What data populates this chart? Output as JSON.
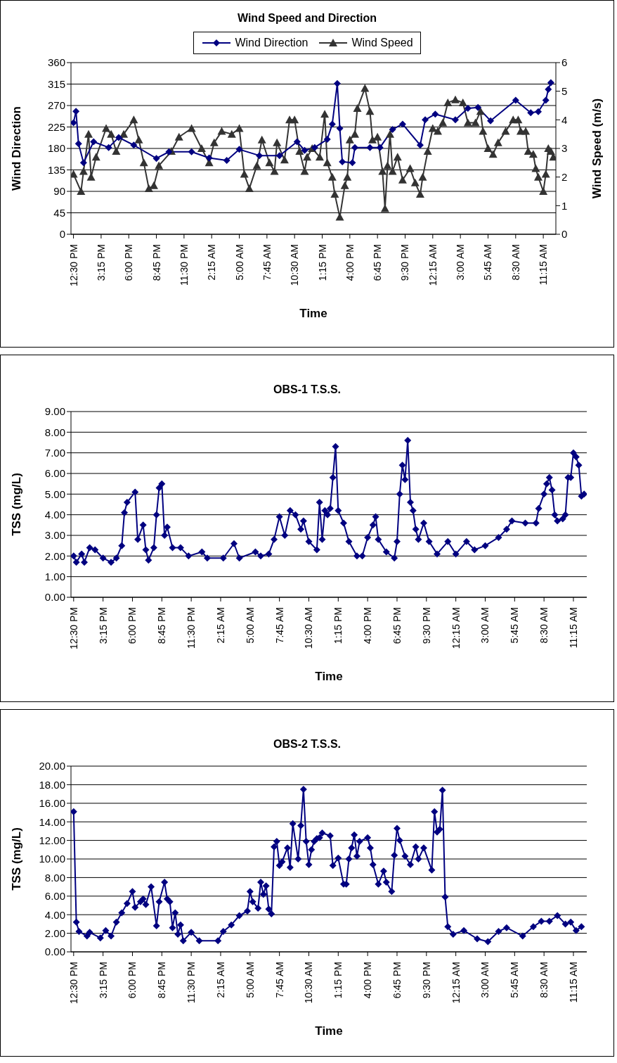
{
  "chart_data": [
    {
      "type": "line",
      "title": "Wind Speed and Direction",
      "xlabel": "Time",
      "ylabel": "Wind Direction",
      "y2label": "Wind Speed (m/s)",
      "legend": "top",
      "grid": "y",
      "line_style": "solid",
      "xlim": [
        "2000-01-01T12:15",
        "2000-01-03T12:30"
      ],
      "xticks": [
        {
          "value": "2000-01-01T12:30",
          "label": "12:30 PM"
        },
        {
          "value": "2000-01-01T15:15",
          "label": "3:15 PM"
        },
        {
          "value": "2000-01-01T18:00",
          "label": "6:00 PM"
        },
        {
          "value": "2000-01-01T20:45",
          "label": "8:45 PM"
        },
        {
          "value": "2000-01-01T23:30",
          "label": "11:30 PM"
        },
        {
          "value": "2000-01-02T02:15",
          "label": "2:15 AM"
        },
        {
          "value": "2000-01-02T05:00",
          "label": "5:00 AM"
        },
        {
          "value": "2000-01-02T07:45",
          "label": "7:45 AM"
        },
        {
          "value": "2000-01-02T10:30",
          "label": "10:30 AM"
        },
        {
          "value": "2000-01-02T13:15",
          "label": "1:15 PM"
        },
        {
          "value": "2000-01-02T16:00",
          "label": "4:00 PM"
        },
        {
          "value": "2000-01-02T18:45",
          "label": "6:45 PM"
        },
        {
          "value": "2000-01-02T21:30",
          "label": "9:30 PM"
        },
        {
          "value": "2000-01-03T00:15",
          "label": "12:15 AM"
        },
        {
          "value": "2000-01-03T03:00",
          "label": "3:00 AM"
        },
        {
          "value": "2000-01-03T05:45",
          "label": "5:45 AM"
        },
        {
          "value": "2000-01-03T08:30",
          "label": "8:30 AM"
        },
        {
          "value": "2000-01-03T11:15",
          "label": "11:15 AM"
        }
      ],
      "ylim": [
        0,
        360
      ],
      "yticks": [
        0,
        45,
        90,
        135,
        180,
        225,
        270,
        315,
        360
      ],
      "y2lim": [
        0,
        6
      ],
      "y2ticks": [
        0,
        1,
        2,
        3,
        4,
        5,
        6
      ],
      "series": [
        {
          "name": "Wind Direction",
          "color": "#000080",
          "marker": "diamond",
          "x": [
            "2000-01-01T12:30",
            "2000-01-01T12:45",
            "2000-01-01T13:00",
            "2000-01-01T13:30",
            "2000-01-01T14:30",
            "2000-01-01T16:00",
            "2000-01-01T17:00",
            "2000-01-01T18:30",
            "2000-01-01T20:45",
            "2000-01-01T22:00",
            "2000-01-02T00:15",
            "2000-01-02T02:00",
            "2000-01-02T03:45",
            "2000-01-02T05:00",
            "2000-01-02T07:00",
            "2000-01-02T09:00",
            "2000-01-02T10:45",
            "2000-01-02T11:30",
            "2000-01-02T12:30",
            "2000-01-02T13:45",
            "2000-01-02T14:15",
            "2000-01-02T14:45",
            "2000-01-02T15:00",
            "2000-01-02T15:15",
            "2000-01-02T16:15",
            "2000-01-02T16:30",
            "2000-01-02T18:00",
            "2000-01-02T19:00",
            "2000-01-02T20:15",
            "2000-01-02T21:15",
            "2000-01-02T23:00",
            "2000-01-02T23:30",
            "2000-01-03T00:30",
            "2000-01-03T02:30",
            "2000-01-03T03:45",
            "2000-01-03T04:45",
            "2000-01-03T06:00",
            "2000-01-03T08:30",
            "2000-01-03T10:00",
            "2000-01-03T10:45",
            "2000-01-03T11:30",
            "2000-01-03T11:45",
            "2000-01-03T12:00"
          ],
          "values": [
            234,
            258,
            190,
            150,
            194,
            182,
            203,
            187,
            159,
            173,
            173,
            160,
            155,
            178,
            165,
            165,
            194,
            176,
            182,
            199,
            231,
            316,
            222,
            152,
            150,
            182,
            182,
            182,
            220,
            231,
            187,
            240,
            252,
            240,
            264,
            266,
            238,
            281,
            255,
            257,
            281,
            304,
            318
          ]
        },
        {
          "name": "Wind Speed",
          "color": "#333333",
          "marker": "triangle",
          "axis": "y2",
          "x": [
            "2000-01-01T12:30",
            "2000-01-01T13:15",
            "2000-01-01T13:30",
            "2000-01-01T14:00",
            "2000-01-01T14:15",
            "2000-01-01T14:45",
            "2000-01-01T15:45",
            "2000-01-01T16:15",
            "2000-01-01T16:45",
            "2000-01-01T17:30",
            "2000-01-01T18:30",
            "2000-01-01T19:00",
            "2000-01-01T19:30",
            "2000-01-01T20:00",
            "2000-01-01T20:30",
            "2000-01-01T21:00",
            "2000-01-01T22:15",
            "2000-01-01T23:00",
            "2000-01-02T00:15",
            "2000-01-02T01:15",
            "2000-01-02T02:00",
            "2000-01-02T02:30",
            "2000-01-02T03:15",
            "2000-01-02T04:15",
            "2000-01-02T05:00",
            "2000-01-02T05:30",
            "2000-01-02T06:00",
            "2000-01-02T06:45",
            "2000-01-02T07:15",
            "2000-01-02T08:00",
            "2000-01-02T08:30",
            "2000-01-02T08:45",
            "2000-01-02T09:30",
            "2000-01-02T10:00",
            "2000-01-02T10:30",
            "2000-01-02T11:00",
            "2000-01-02T11:30",
            "2000-01-02T11:45",
            "2000-01-02T12:15",
            "2000-01-02T13:00",
            "2000-01-02T13:30",
            "2000-01-02T13:45",
            "2000-01-02T14:15",
            "2000-01-02T14:30",
            "2000-01-02T15:00",
            "2000-01-02T15:30",
            "2000-01-02T15:45",
            "2000-01-02T16:00",
            "2000-01-02T16:30",
            "2000-01-02T16:45",
            "2000-01-02T17:30",
            "2000-01-02T18:00",
            "2000-01-02T18:15",
            "2000-01-02T18:45",
            "2000-01-02T19:15",
            "2000-01-02T19:30",
            "2000-01-02T19:45",
            "2000-01-02T20:00",
            "2000-01-02T20:15",
            "2000-01-02T20:45",
            "2000-01-02T21:15",
            "2000-01-02T22:00",
            "2000-01-02T22:30",
            "2000-01-02T23:00",
            "2000-01-02T23:15",
            "2000-01-02T23:45",
            "2000-01-03T00:15",
            "2000-01-03T00:45",
            "2000-01-03T01:15",
            "2000-01-03T01:45",
            "2000-01-03T02:30",
            "2000-01-03T03:15",
            "2000-01-03T03:45",
            "2000-01-03T04:30",
            "2000-01-03T05:00",
            "2000-01-03T05:15",
            "2000-01-03T05:45",
            "2000-01-03T06:15",
            "2000-01-03T06:45",
            "2000-01-03T07:30",
            "2000-01-03T08:15",
            "2000-01-03T08:45",
            "2000-01-03T09:00",
            "2000-01-03T09:30",
            "2000-01-03T09:45",
            "2000-01-03T10:15",
            "2000-01-03T10:30",
            "2000-01-03T10:45",
            "2000-01-03T11:15",
            "2000-01-03T11:30",
            "2000-01-03T11:45",
            "2000-01-03T12:00",
            "2000-01-03T12:15"
          ],
          "values": [
            2.1,
            1.5,
            2.2,
            3.5,
            2.0,
            2.7,
            3.7,
            3.5,
            2.9,
            3.5,
            4.0,
            3.3,
            2.5,
            1.6,
            1.7,
            2.4,
            2.9,
            3.4,
            3.7,
            3.0,
            2.5,
            3.2,
            3.6,
            3.5,
            3.7,
            2.1,
            1.6,
            2.4,
            3.3,
            2.5,
            2.2,
            3.2,
            2.6,
            4.0,
            4.0,
            2.9,
            2.2,
            2.7,
            3.0,
            2.7,
            4.2,
            2.5,
            2.0,
            1.4,
            0.6,
            1.7,
            2.0,
            3.3,
            3.5,
            4.4,
            5.1,
            4.3,
            3.3,
            3.4,
            2.2,
            0.9,
            2.4,
            3.5,
            2.2,
            2.7,
            1.9,
            2.3,
            1.8,
            1.4,
            2.0,
            2.9,
            3.7,
            3.6,
            3.9,
            4.6,
            4.7,
            4.6,
            3.9,
            3.9,
            4.3,
            3.6,
            3.0,
            2.8,
            3.2,
            3.6,
            4.0,
            4.0,
            3.6,
            3.6,
            2.9,
            2.8,
            2.3,
            2.0,
            1.5,
            2.1,
            3.0,
            2.9,
            2.7
          ]
        }
      ]
    },
    {
      "type": "line",
      "title": "OBS-1 T.S.S.",
      "xlabel": "Time",
      "ylabel": "TSS (mg/L)",
      "grid": "y",
      "line_style": "solid",
      "xlim": [
        "2000-01-01T12:15",
        "2000-01-03T12:30"
      ],
      "xticks": [
        {
          "value": "2000-01-01T12:30",
          "label": "12:30 PM"
        },
        {
          "value": "2000-01-01T15:15",
          "label": "3:15 PM"
        },
        {
          "value": "2000-01-01T18:00",
          "label": "6:00 PM"
        },
        {
          "value": "2000-01-01T20:45",
          "label": "8:45 PM"
        },
        {
          "value": "2000-01-01T23:30",
          "label": "11:30 PM"
        },
        {
          "value": "2000-01-02T02:15",
          "label": "2:15 AM"
        },
        {
          "value": "2000-01-02T05:00",
          "label": "5:00 AM"
        },
        {
          "value": "2000-01-02T07:45",
          "label": "7:45 AM"
        },
        {
          "value": "2000-01-02T10:30",
          "label": "10:30 AM"
        },
        {
          "value": "2000-01-02T13:15",
          "label": "1:15 PM"
        },
        {
          "value": "2000-01-02T16:00",
          "label": "4:00 PM"
        },
        {
          "value": "2000-01-02T18:45",
          "label": "6:45 PM"
        },
        {
          "value": "2000-01-02T21:30",
          "label": "9:30 PM"
        },
        {
          "value": "2000-01-03T00:15",
          "label": "12:15 AM"
        },
        {
          "value": "2000-01-03T03:00",
          "label": "3:00 AM"
        },
        {
          "value": "2000-01-03T05:45",
          "label": "5:45 AM"
        },
        {
          "value": "2000-01-03T08:30",
          "label": "8:30 AM"
        },
        {
          "value": "2000-01-03T11:15",
          "label": "11:15 AM"
        }
      ],
      "ylim": [
        0,
        9
      ],
      "yticks": [
        {
          "value": 0,
          "label": "0.00"
        },
        {
          "value": 1,
          "label": "1.00"
        },
        {
          "value": 2,
          "label": "2.00"
        },
        {
          "value": 3,
          "label": "3.00"
        },
        {
          "value": 4,
          "label": "4.00"
        },
        {
          "value": 5,
          "label": "5.00"
        },
        {
          "value": 6,
          "label": "6.00"
        },
        {
          "value": 7,
          "label": "7.00"
        },
        {
          "value": 8,
          "label": "8.00"
        },
        {
          "value": 9,
          "label": "9.00"
        }
      ],
      "series": [
        {
          "color": "#000080",
          "marker": "diamond",
          "x": [
            "2000-01-01T12:30",
            "2000-01-01T12:45",
            "2000-01-01T13:15",
            "2000-01-01T13:30",
            "2000-01-01T14:00",
            "2000-01-01T14:30",
            "2000-01-01T15:15",
            "2000-01-01T16:00",
            "2000-01-01T16:30",
            "2000-01-01T17:00",
            "2000-01-01T17:15",
            "2000-01-01T17:30",
            "2000-01-01T18:15",
            "2000-01-01T18:30",
            "2000-01-01T19:00",
            "2000-01-01T19:15",
            "2000-01-01T19:30",
            "2000-01-01T20:00",
            "2000-01-01T20:15",
            "2000-01-01T20:30",
            "2000-01-01T20:45",
            "2000-01-01T21:00",
            "2000-01-01T21:15",
            "2000-01-01T21:45",
            "2000-01-01T22:30",
            "2000-01-01T23:15",
            "2000-01-02T00:30",
            "2000-01-02T01:00",
            "2000-01-02T02:30",
            "2000-01-02T03:30",
            "2000-01-02T04:00",
            "2000-01-02T05:30",
            "2000-01-02T06:00",
            "2000-01-02T06:45",
            "2000-01-02T07:15",
            "2000-01-02T07:45",
            "2000-01-02T08:15",
            "2000-01-02T08:45",
            "2000-01-02T09:15",
            "2000-01-02T09:45",
            "2000-01-02T10:00",
            "2000-01-02T10:30",
            "2000-01-02T11:15",
            "2000-01-02T11:30",
            "2000-01-02T11:45",
            "2000-01-02T12:00",
            "2000-01-02T12:15",
            "2000-01-02T12:30",
            "2000-01-02T12:45",
            "2000-01-02T13:00",
            "2000-01-02T13:15",
            "2000-01-02T13:45",
            "2000-01-02T14:15",
            "2000-01-02T15:00",
            "2000-01-02T15:30",
            "2000-01-02T16:00",
            "2000-01-02T16:30",
            "2000-01-02T16:45",
            "2000-01-02T17:00",
            "2000-01-02T17:45",
            "2000-01-02T18:30",
            "2000-01-02T18:45",
            "2000-01-02T19:00",
            "2000-01-02T19:15",
            "2000-01-02T19:30",
            "2000-01-02T19:45",
            "2000-01-02T20:00",
            "2000-01-02T20:15",
            "2000-01-02T20:30",
            "2000-01-02T20:45",
            "2000-01-02T21:15",
            "2000-01-02T21:45",
            "2000-01-02T22:30",
            "2000-01-02T23:30",
            "2000-01-03T00:15",
            "2000-01-03T01:15",
            "2000-01-03T02:00",
            "2000-01-03T03:00",
            "2000-01-03T04:15",
            "2000-01-03T05:00",
            "2000-01-03T05:30",
            "2000-01-03T06:45",
            "2000-01-03T07:45",
            "2000-01-03T08:00",
            "2000-01-03T08:30",
            "2000-01-03T08:45",
            "2000-01-03T09:00",
            "2000-01-03T09:15",
            "2000-01-03T09:30",
            "2000-01-03T09:45",
            "2000-01-03T10:15",
            "2000-01-03T10:30",
            "2000-01-03T10:45",
            "2000-01-03T11:00",
            "2000-01-03T11:15",
            "2000-01-03T11:30",
            "2000-01-03T11:45",
            "2000-01-03T12:00",
            "2000-01-03T12:15"
          ],
          "values": [
            2.0,
            1.7,
            2.1,
            1.7,
            2.4,
            2.3,
            1.9,
            1.7,
            1.9,
            2.5,
            4.1,
            4.6,
            5.1,
            2.8,
            3.5,
            2.3,
            1.8,
            2.4,
            4.0,
            5.3,
            5.5,
            3.0,
            3.4,
            2.4,
            2.4,
            2.0,
            2.2,
            1.9,
            1.9,
            2.6,
            1.9,
            2.2,
            2.0,
            2.1,
            2.8,
            3.9,
            3.0,
            4.2,
            4.0,
            3.3,
            3.7,
            2.7,
            2.3,
            4.6,
            2.8,
            4.2,
            4.0,
            4.3,
            5.8,
            7.3,
            4.2,
            3.6,
            2.7,
            2.0,
            2.0,
            2.9,
            3.5,
            3.9,
            2.8,
            2.2,
            1.9,
            2.7,
            5.0,
            6.4,
            5.7,
            7.6,
            4.6,
            4.2,
            3.3,
            2.8,
            3.6,
            2.7,
            2.1,
            2.7,
            2.1,
            2.7,
            2.3,
            2.5,
            2.9,
            3.3,
            3.7,
            3.6,
            3.6,
            4.3,
            5.0,
            5.5,
            5.8,
            5.2,
            4.0,
            3.7,
            3.8,
            4.0,
            5.8,
            5.8,
            7.0,
            6.8,
            6.4,
            4.9,
            5.0
          ]
        }
      ]
    },
    {
      "type": "line",
      "title": "OBS-2 T.S.S.",
      "xlabel": "Time",
      "ylabel": "TSS (mg/L)",
      "grid": "y",
      "line_style": "solid",
      "xlim": [
        "2000-01-01T12:15",
        "2000-01-03T12:30"
      ],
      "xticks": [
        {
          "value": "2000-01-01T12:30",
          "label": "12:30 PM"
        },
        {
          "value": "2000-01-01T15:15",
          "label": "3:15 PM"
        },
        {
          "value": "2000-01-01T18:00",
          "label": "6:00 PM"
        },
        {
          "value": "2000-01-01T20:45",
          "label": "8:45 PM"
        },
        {
          "value": "2000-01-01T23:30",
          "label": "11:30 PM"
        },
        {
          "value": "2000-01-02T02:15",
          "label": "2:15 AM"
        },
        {
          "value": "2000-01-02T05:00",
          "label": "5:00 AM"
        },
        {
          "value": "2000-01-02T07:45",
          "label": "7:45 AM"
        },
        {
          "value": "2000-01-02T10:30",
          "label": "10:30 AM"
        },
        {
          "value": "2000-01-02T13:15",
          "label": "1:15 PM"
        },
        {
          "value": "2000-01-02T16:00",
          "label": "4:00 PM"
        },
        {
          "value": "2000-01-02T18:45",
          "label": "6:45 PM"
        },
        {
          "value": "2000-01-02T21:30",
          "label": "9:30 PM"
        },
        {
          "value": "2000-01-03T00:15",
          "label": "12:15 AM"
        },
        {
          "value": "2000-01-03T03:00",
          "label": "3:00 AM"
        },
        {
          "value": "2000-01-03T05:45",
          "label": "5:45 AM"
        },
        {
          "value": "2000-01-03T08:30",
          "label": "8:30 AM"
        },
        {
          "value": "2000-01-03T11:15",
          "label": "11:15 AM"
        }
      ],
      "ylim": [
        0,
        20
      ],
      "yticks": [
        {
          "value": 0,
          "label": "0.00"
        },
        {
          "value": 2,
          "label": "2.00"
        },
        {
          "value": 4,
          "label": "4.00"
        },
        {
          "value": 6,
          "label": "6.00"
        },
        {
          "value": 8,
          "label": "8.00"
        },
        {
          "value": 10,
          "label": "10.00"
        },
        {
          "value": 12,
          "label": "12.00"
        },
        {
          "value": 14,
          "label": "14.00"
        },
        {
          "value": 16,
          "label": "16.00"
        },
        {
          "value": 18,
          "label": "18.00"
        },
        {
          "value": 20,
          "label": "20.00"
        }
      ],
      "series": [
        {
          "color": "#000080",
          "marker": "diamond",
          "x": [
            "2000-01-01T12:30",
            "2000-01-01T12:45",
            "2000-01-01T13:00",
            "2000-01-01T13:45",
            "2000-01-01T14:00",
            "2000-01-01T15:00",
            "2000-01-01T15:30",
            "2000-01-01T16:00",
            "2000-01-01T16:30",
            "2000-01-01T17:00",
            "2000-01-01T17:30",
            "2000-01-01T18:00",
            "2000-01-01T18:15",
            "2000-01-01T18:45",
            "2000-01-01T19:00",
            "2000-01-01T19:15",
            "2000-01-01T19:45",
            "2000-01-01T20:15",
            "2000-01-01T20:30",
            "2000-01-01T21:00",
            "2000-01-01T21:15",
            "2000-01-01T21:30",
            "2000-01-01T21:45",
            "2000-01-01T22:00",
            "2000-01-01T22:15",
            "2000-01-01T22:30",
            "2000-01-01T22:45",
            "2000-01-01T23:30",
            "2000-01-02T00:15",
            "2000-01-02T02:00",
            "2000-01-02T02:30",
            "2000-01-02T03:15",
            "2000-01-02T04:00",
            "2000-01-02T04:45",
            "2000-01-02T05:00",
            "2000-01-02T05:15",
            "2000-01-02T05:45",
            "2000-01-02T06:00",
            "2000-01-02T06:15",
            "2000-01-02T06:30",
            "2000-01-02T06:45",
            "2000-01-02T07:00",
            "2000-01-02T07:15",
            "2000-01-02T07:30",
            "2000-01-02T07:45",
            "2000-01-02T08:00",
            "2000-01-02T08:30",
            "2000-01-02T08:45",
            "2000-01-02T09:00",
            "2000-01-02T09:30",
            "2000-01-02T09:45",
            "2000-01-02T10:00",
            "2000-01-02T10:15",
            "2000-01-02T10:30",
            "2000-01-02T10:45",
            "2000-01-02T11:00",
            "2000-01-02T11:15",
            "2000-01-02T11:30",
            "2000-01-02T11:45",
            "2000-01-02T12:30",
            "2000-01-02T12:45",
            "2000-01-02T13:15",
            "2000-01-02T13:45",
            "2000-01-02T14:00",
            "2000-01-02T14:15",
            "2000-01-02T14:30",
            "2000-01-02T14:45",
            "2000-01-02T15:00",
            "2000-01-02T15:15",
            "2000-01-02T16:00",
            "2000-01-02T16:15",
            "2000-01-02T16:30",
            "2000-01-02T17:00",
            "2000-01-02T17:30",
            "2000-01-02T17:45",
            "2000-01-02T18:15",
            "2000-01-02T18:30",
            "2000-01-02T18:45",
            "2000-01-02T19:00",
            "2000-01-02T19:30",
            "2000-01-02T20:00",
            "2000-01-02T20:30",
            "2000-01-02T20:45",
            "2000-01-02T21:15",
            "2000-01-02T22:00",
            "2000-01-02T22:15",
            "2000-01-02T22:30",
            "2000-01-02T22:45",
            "2000-01-02T23:00",
            "2000-01-02T23:15",
            "2000-01-02T23:30",
            "2000-01-03T00:00",
            "2000-01-03T01:00",
            "2000-01-03T02:15",
            "2000-01-03T03:15",
            "2000-01-03T04:15",
            "2000-01-03T05:00",
            "2000-01-03T06:30",
            "2000-01-03T07:30",
            "2000-01-03T08:15",
            "2000-01-03T09:00",
            "2000-01-03T09:45",
            "2000-01-03T10:30",
            "2000-01-03T11:00",
            "2000-01-03T11:30",
            "2000-01-03T12:00"
          ],
          "values": [
            15.1,
            3.2,
            2.2,
            1.7,
            2.1,
            1.5,
            2.3,
            1.7,
            3.2,
            4.2,
            5.2,
            6.5,
            4.8,
            5.4,
            5.7,
            5.1,
            7.0,
            2.8,
            5.4,
            7.5,
            5.7,
            5.4,
            2.6,
            4.2,
            1.9,
            2.9,
            1.2,
            2.1,
            1.2,
            1.2,
            2.2,
            2.9,
            3.9,
            4.4,
            6.5,
            5.4,
            4.7,
            7.5,
            6.2,
            7.1,
            4.6,
            4.1,
            11.3,
            11.9,
            9.3,
            9.7,
            11.2,
            9.1,
            13.8,
            10.0,
            13.6,
            17.5,
            11.9,
            9.4,
            11.0,
            11.9,
            12.2,
            12.3,
            12.8,
            12.5,
            9.3,
            10.1,
            7.3,
            7.3,
            10.0,
            11.2,
            12.6,
            10.3,
            11.9,
            12.3,
            11.2,
            9.4,
            7.3,
            8.7,
            7.5,
            6.5,
            10.4,
            13.3,
            12.0,
            10.3,
            9.4,
            11.3,
            10.0,
            11.2,
            8.8,
            15.1,
            12.9,
            13.2,
            17.4,
            5.9,
            2.7,
            1.9,
            2.3,
            1.4,
            1.1,
            2.2,
            2.6,
            1.7,
            2.7,
            3.3,
            3.3,
            3.9,
            3.0,
            3.2,
            2.3,
            2.7
          ]
        }
      ]
    }
  ]
}
